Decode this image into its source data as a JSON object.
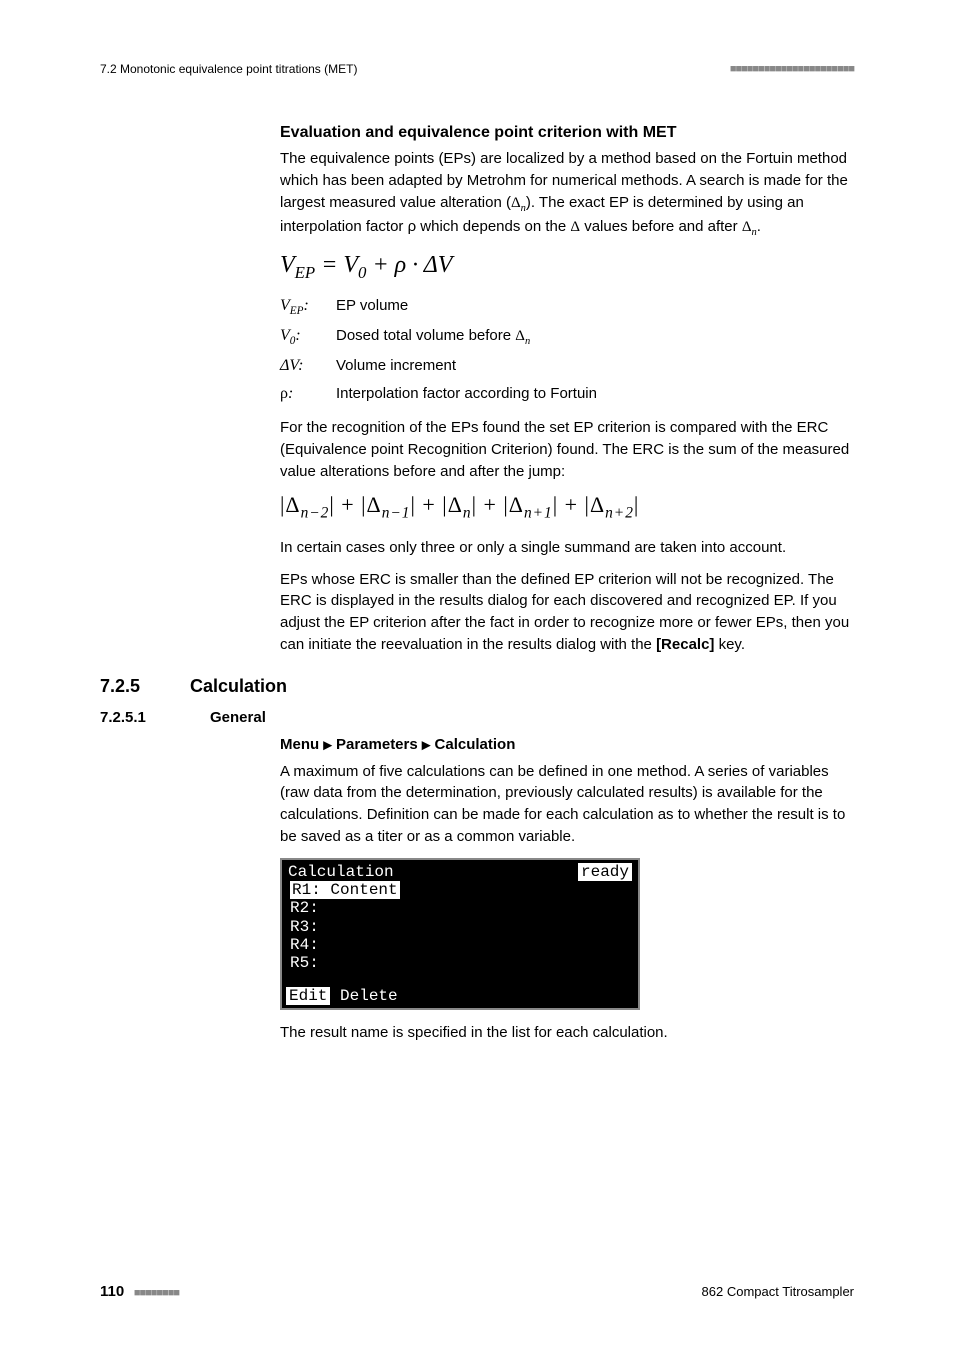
{
  "header": {
    "section_ref": "7.2 Monotonic equivalence point titrations (MET)",
    "dashes": "■■■■■■■■■■■■■■■■■■■■■■"
  },
  "heading1": "Evaluation and equivalence point criterion with MET",
  "para1_a": "The equivalence points (EPs) are localized by a method based on the Fortuin method which has been adapted by Metrohm for numerical methods. A search is made for the largest measured value alteration (",
  "para1_b": "). The exact EP is determined by using an interpolation factor ρ which depends on the ",
  "para1_c": " values before and after ",
  "delta_n": "Δ",
  "delta_n_sub": "n",
  "delta_plain": "Δ",
  "formula": {
    "text": "V",
    "sub1": "EP",
    "eq": " = V",
    "sub2": "0",
    "plus": " + ρ · ΔV"
  },
  "defs": [
    {
      "sym": "V",
      "sub": "EP",
      "suffix": ":",
      "txt": "EP volume"
    },
    {
      "sym": "V",
      "sub": "0",
      "suffix": ":",
      "txt_a": "Dosed total volume before ",
      "has_delta": true
    },
    {
      "sym": "ΔV",
      "sub": "",
      "suffix": ":",
      "txt": "Volume increment"
    },
    {
      "sym": "ρ",
      "sub": "",
      "suffix": ":",
      "txt": "Interpolation factor according to Fortuin"
    }
  ],
  "para2": "For the recognition of the EPs found the set EP criterion is compared with the ERC (Equivalence point Recognition Criterion) found. The ERC is the sum of the measured value alterations before and after the jump:",
  "erc_formula": "|Δ",
  "erc_parts": [
    "n−2",
    "n−1",
    "n",
    "n+1",
    "n+2"
  ],
  "para3": "In certain cases only three or only a single summand are taken into account.",
  "para4_a": "EPs whose ERC is smaller than the defined EP criterion will not be recognized. The ERC is displayed in the results dialog for each discovered and recognized EP. If you adjust the EP criterion after the fact in order to recognize more or fewer EPs, then you can initiate the reevaluation in the results dialog with the ",
  "para4_key": "[Recalc]",
  "para4_b": " key.",
  "section": {
    "num": "7.2.5",
    "title": "Calculation"
  },
  "subsection": {
    "num": "7.2.5.1",
    "title": "General"
  },
  "menu_path": {
    "a": "Menu",
    "b": "Parameters",
    "c": "Calculation"
  },
  "para5": "A maximum of five calculations can be defined in one method. A series of variables (raw data from the determination, previously calculated results) is available for the calculations. Definition can be made for each calculation as to whether the result is to be saved as a titer or as a common variable.",
  "lcd": {
    "title": "Calculation",
    "status": "ready",
    "rows": [
      {
        "label": "R1:",
        "value": "Content",
        "selected": true
      },
      {
        "label": "R2:",
        "value": "",
        "selected": false
      },
      {
        "label": "R3:",
        "value": "",
        "selected": false
      },
      {
        "label": "R4:",
        "value": "",
        "selected": false
      },
      {
        "label": "R5:",
        "value": "",
        "selected": false
      }
    ],
    "btn_edit": "Edit",
    "btn_delete": "Delete"
  },
  "para6": "The result name is specified in the list for each calculation.",
  "footer": {
    "page": "110",
    "dashes": "■■■■■■■■",
    "doc": "862 Compact Titrosampler"
  }
}
